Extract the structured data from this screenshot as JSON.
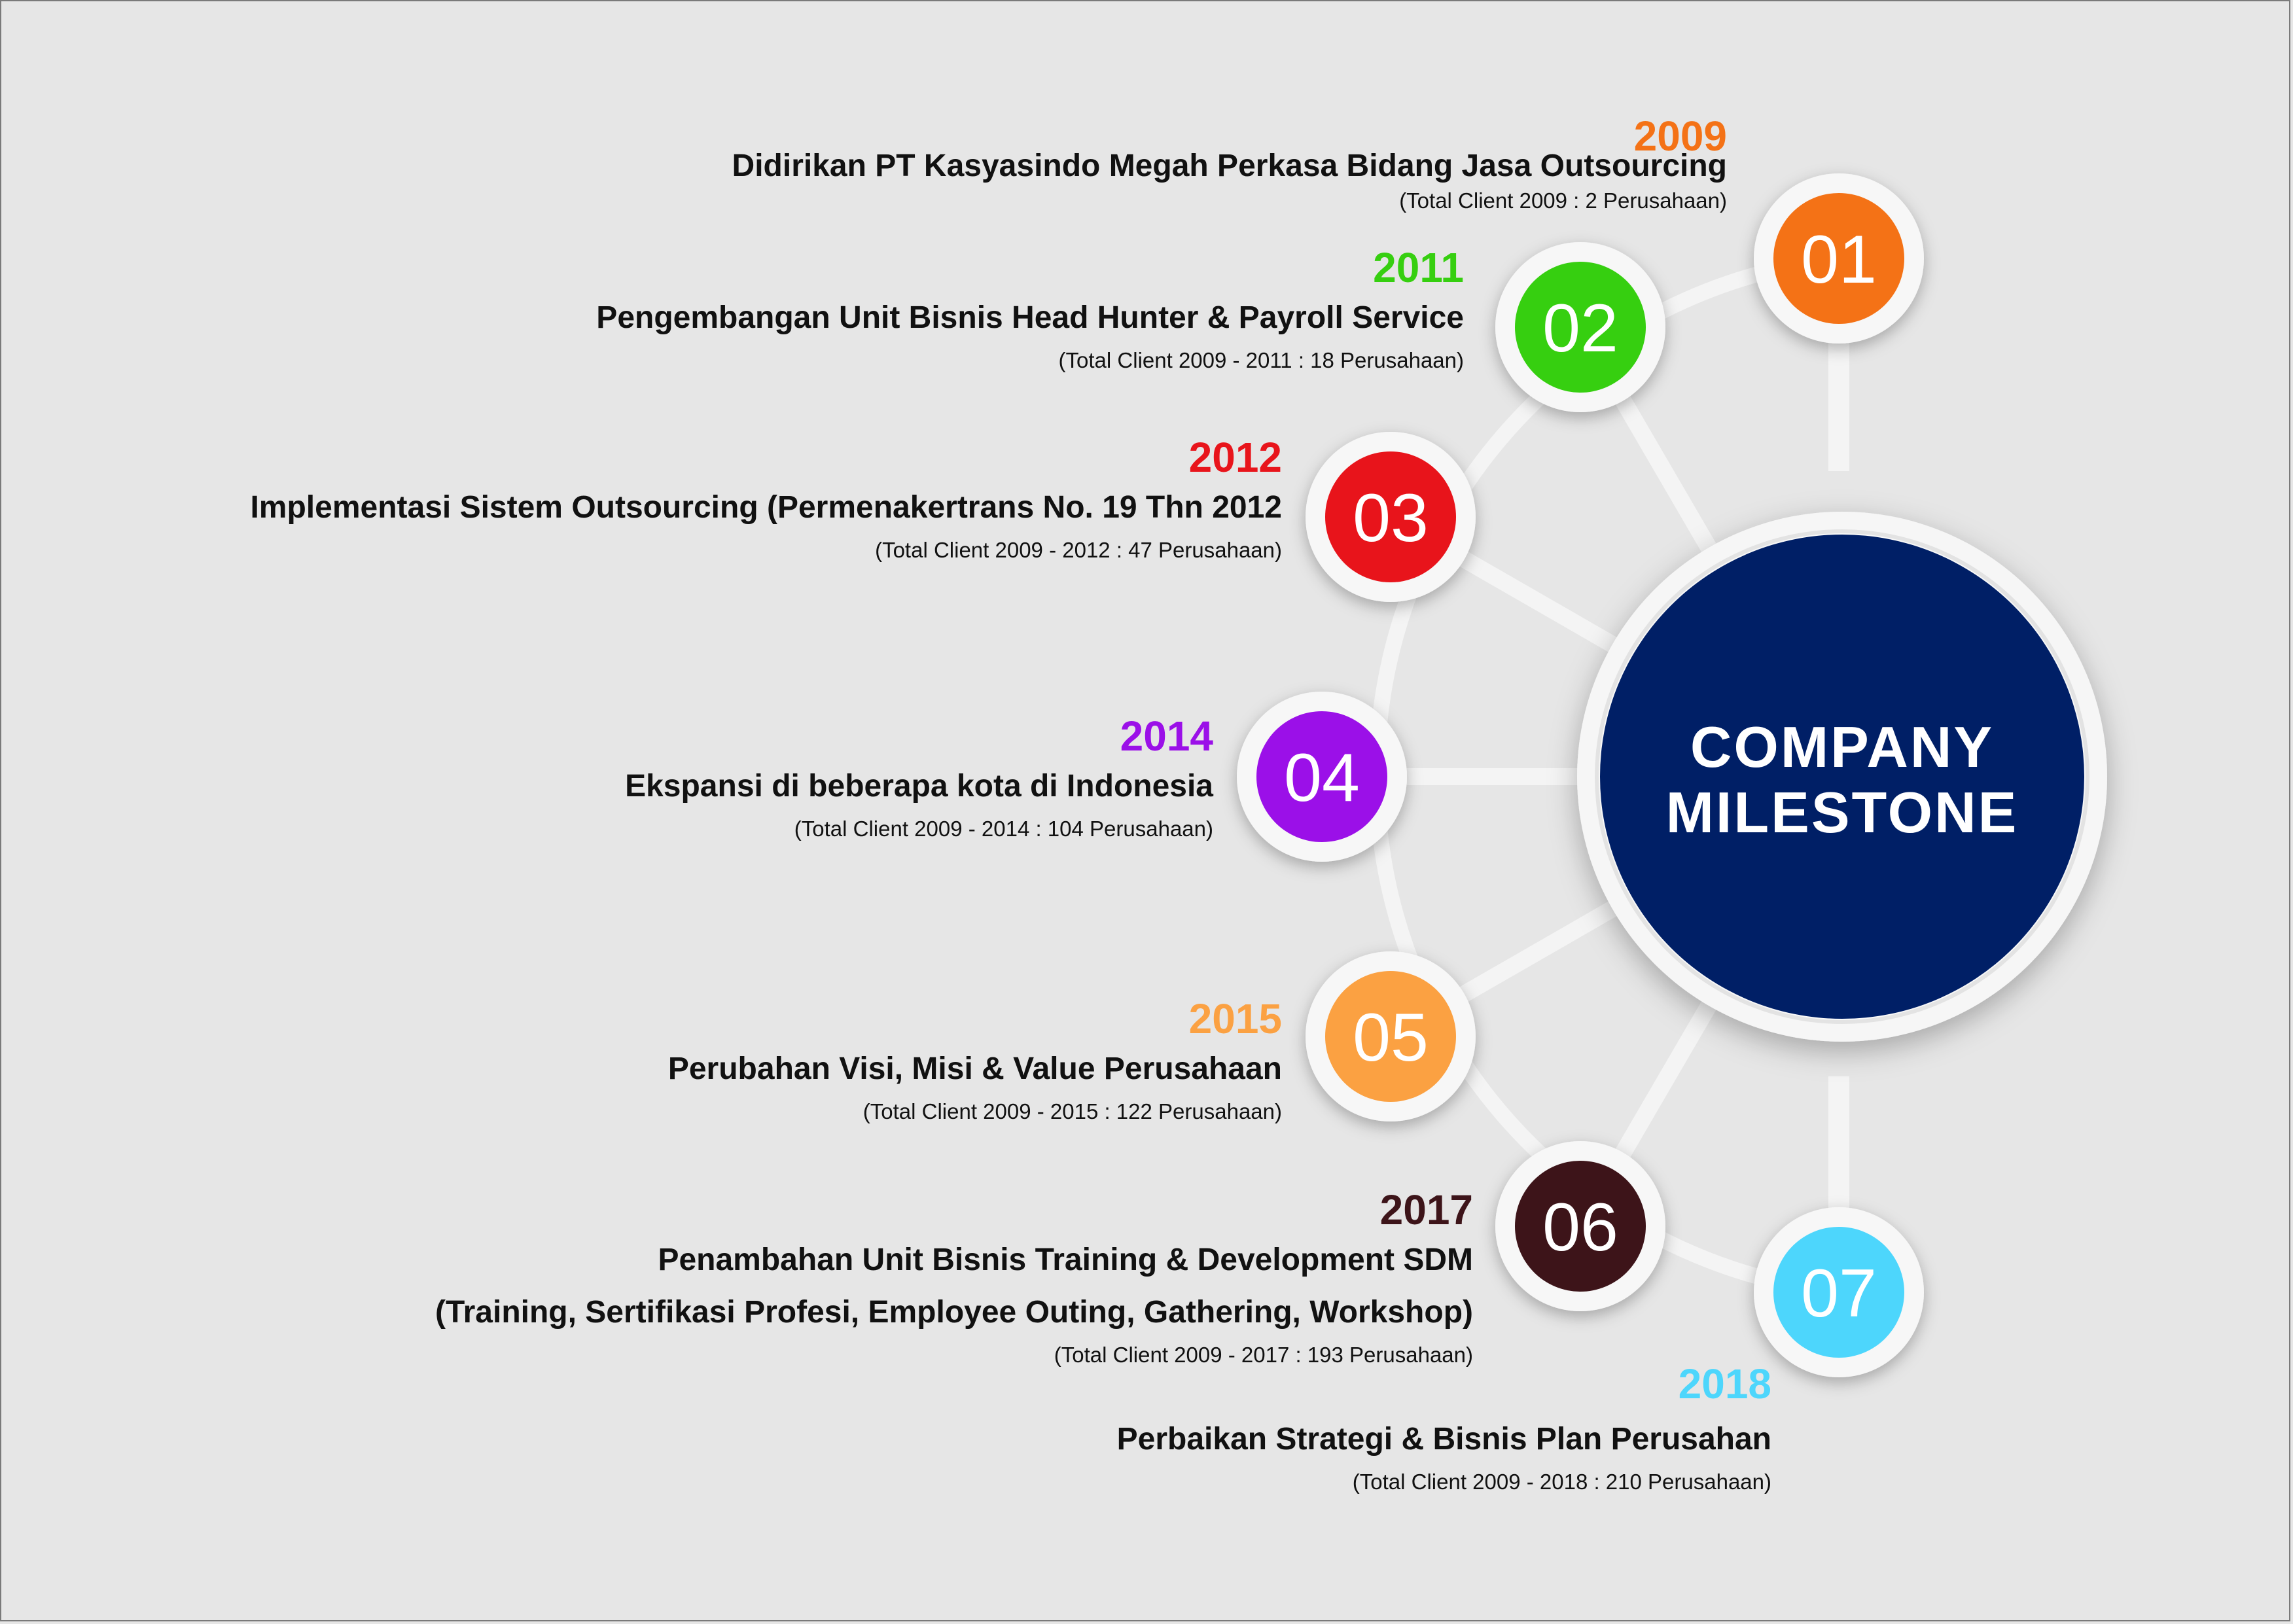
{
  "center": {
    "line1": "COMPANY",
    "line2": "MILESTONE",
    "color": "#001f66"
  },
  "milestones": [
    {
      "num": "01",
      "year": "2009",
      "color": "#f47216",
      "desc": "Didirikan PT Kasyasindo Megah Perkasa Bidang Jasa Outsourcing",
      "desc2": "",
      "sub": "(Total Client 2009 : 2 Perusahaan)"
    },
    {
      "num": "02",
      "year": "2011",
      "color": "#36cf10",
      "desc": "Pengembangan Unit Bisnis Head Hunter & Payroll Service",
      "desc2": "",
      "sub": "(Total Client 2009 - 2011 : 18 Perusahaan)"
    },
    {
      "num": "03",
      "year": "2012",
      "color": "#e8141b",
      "desc": "Implementasi Sistem Outsourcing (Permenakertrans No. 19 Thn 2012",
      "desc2": "",
      "sub": "(Total Client 2009 - 2012 : 47 Perusahaan)"
    },
    {
      "num": "04",
      "year": "2014",
      "color": "#9b10e8",
      "desc": "Ekspansi di beberapa kota di Indonesia",
      "desc2": "",
      "sub": "(Total Client 2009 - 2014 : 104 Perusahaan)"
    },
    {
      "num": "05",
      "year": "2015",
      "color": "#fba142",
      "desc": "Perubahan Visi, Misi & Value Perusahaan",
      "desc2": "",
      "sub": "(Total Client 2009 - 2015 : 122 Perusahaan)"
    },
    {
      "num": "06",
      "year": "2017",
      "color": "#3d1419",
      "desc": "Penambahan Unit Bisnis Training & Development SDM",
      "desc2": "(Training, Sertifikasi Profesi, Employee Outing, Gathering, Workshop)",
      "sub": "(Total Client 2009 - 2017 : 193 Perusahaan)"
    },
    {
      "num": "07",
      "year": "2018",
      "color": "#4dd6fc",
      "desc": "Perbaikan Strategi & Bisnis Plan Perusahan",
      "desc2": "",
      "sub": "(Total Client 2009 - 2018 : 210 Perusahaan)"
    }
  ]
}
